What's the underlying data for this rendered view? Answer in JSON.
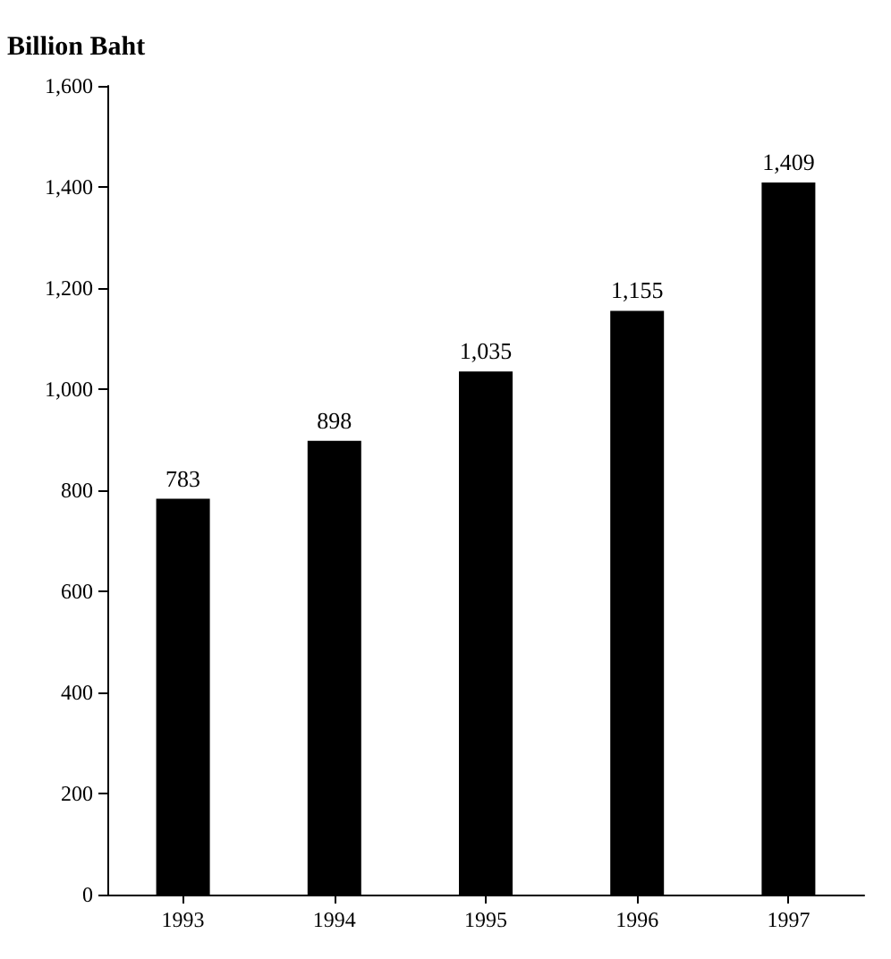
{
  "chart_data": {
    "type": "bar",
    "ylabel": "Billion Baht",
    "categories": [
      "1993",
      "1994",
      "1995",
      "1996",
      "1997"
    ],
    "values": [
      783,
      898,
      1035,
      1155,
      1409
    ],
    "value_labels": [
      "783",
      "898",
      "1,035",
      "1,155",
      "1,409"
    ],
    "color": "#000000",
    "ylim": [
      0,
      1600
    ],
    "yticks": [
      0,
      200,
      400,
      600,
      800,
      {
        "value": 1000,
        "label": "1,000"
      },
      {
        "value": 1200,
        "label": "1,200"
      },
      {
        "value": 1400,
        "label": "1,400"
      },
      {
        "value": 1600,
        "label": "1,600"
      }
    ],
    "grid": false
  }
}
